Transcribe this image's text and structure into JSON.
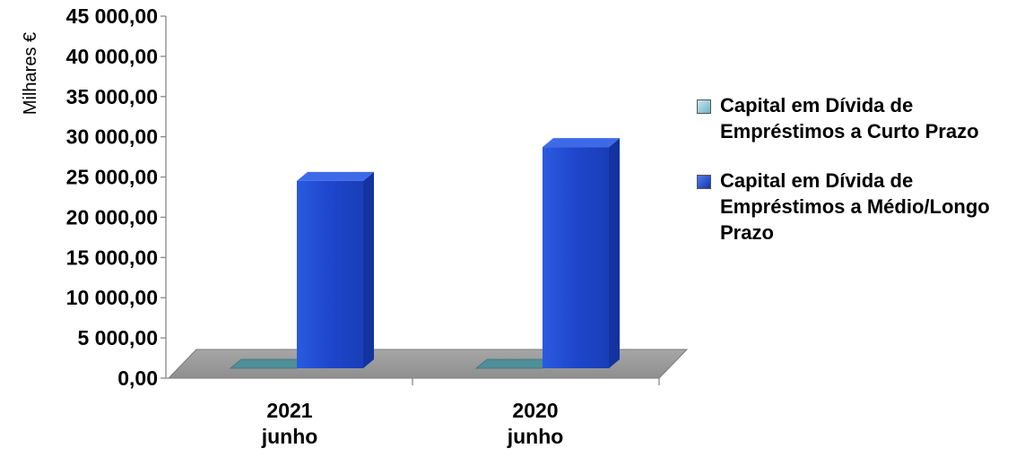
{
  "chart_data": {
    "type": "bar",
    "title": "",
    "xlabel": "",
    "ylabel": "Milhares €",
    "ylim": [
      0,
      45000
    ],
    "y_ticks": [
      "0,00",
      "5 000,00",
      "10 000,00",
      "15 000,00",
      "20 000,00",
      "25 000,00",
      "30 000,00",
      "35 000,00",
      "40 000,00",
      "45 000,00"
    ],
    "categories": [
      "2021\njunho",
      "2020\njunho"
    ],
    "series": [
      {
        "name": "Capital em Dívida de\nEmpréstimos a Curto Prazo",
        "color": "#5f9ea8",
        "values": [
          0,
          0
        ]
      },
      {
        "name": "Capital em Dívida de\nEmpréstimos a Médio/Longo\nPrazo",
        "color": "#1f4fd6",
        "values": [
          23300,
          27500
        ]
      }
    ],
    "legend_position": "right",
    "grid": false,
    "style": "3d"
  }
}
